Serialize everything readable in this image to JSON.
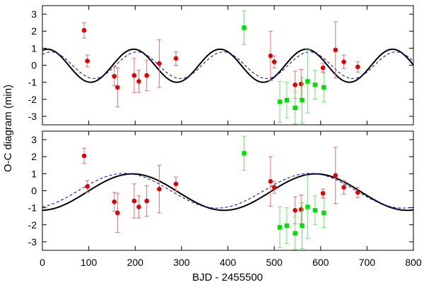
{
  "chart_data": {
    "type": "scatter",
    "xlabel": "BJD - 2455500",
    "ylabel": "O-C diagram (min)",
    "xlim": [
      0,
      800
    ],
    "ylim": [
      -3.5,
      3.5
    ],
    "xticks": [
      "0",
      "100",
      "200",
      "300",
      "400",
      "500",
      "600",
      "700",
      "800"
    ],
    "yticks": [
      "-3",
      "-2",
      "-1",
      "0",
      "1",
      "2",
      "3"
    ],
    "colors": {
      "red": "#e00000",
      "red_error": "#e07070",
      "green": "#00e000",
      "green_error": "#66e866",
      "model_solid": "#000000",
      "model_dashed": "#0000cc"
    },
    "red_points": [
      {
        "x": 90,
        "y": 2.05,
        "err": 0.45
      },
      {
        "x": 97,
        "y": 0.25,
        "err": 0.35
      },
      {
        "x": 155,
        "y": -0.65,
        "err": 0.55
      },
      {
        "x": 162,
        "y": -1.3,
        "err": 1.15
      },
      {
        "x": 198,
        "y": -0.6,
        "err": 1.0
      },
      {
        "x": 208,
        "y": -0.95,
        "err": 0.65
      },
      {
        "x": 225,
        "y": -0.6,
        "err": 0.9
      },
      {
        "x": 252,
        "y": 0.1,
        "err": 1.4
      },
      {
        "x": 288,
        "y": 0.4,
        "err": 0.4
      },
      {
        "x": 492,
        "y": 0.55,
        "err": 1.45
      },
      {
        "x": 500,
        "y": 0.2,
        "err": 0.35
      },
      {
        "x": 545,
        "y": -1.15,
        "err": 0.8
      },
      {
        "x": 558,
        "y": -1.1,
        "err": 0.85
      },
      {
        "x": 605,
        "y": -0.15,
        "err": 0.25
      },
      {
        "x": 632,
        "y": 0.9,
        "err": 1.65
      },
      {
        "x": 650,
        "y": 0.2,
        "err": 0.4
      },
      {
        "x": 680,
        "y": -0.1,
        "err": 0.3
      }
    ],
    "green_points": [
      {
        "x": 435,
        "y": 2.2,
        "err": 1.0
      },
      {
        "x": 512,
        "y": -2.15,
        "err": 1.2
      },
      {
        "x": 527,
        "y": -2.05,
        "err": 1.05
      },
      {
        "x": 545,
        "y": -2.5,
        "err": 0.95
      },
      {
        "x": 560,
        "y": -2.05,
        "err": 1.35
      },
      {
        "x": 572,
        "y": -0.95,
        "err": 1.85
      },
      {
        "x": 588,
        "y": -1.15,
        "err": 0.85
      },
      {
        "x": 607,
        "y": -1.3,
        "err": 0.85
      }
    ],
    "panels": [
      {
        "name": "top",
        "model_solid": {
          "amplitude": 0.97,
          "period": 186,
          "phase": 1.2,
          "offset": -0.03
        },
        "model_dashed": {
          "amplitude": 0.78,
          "period": 186,
          "phase": 0.95,
          "offset": 0.0
        }
      },
      {
        "name": "bottom",
        "model_solid": {
          "amplitude": 1.07,
          "period": 395,
          "phase": -1.52,
          "offset": -0.08
        },
        "model_dashed": {
          "amplitude": 1.02,
          "period": 400,
          "phase": -1.21,
          "offset": 0.0
        }
      }
    ]
  }
}
